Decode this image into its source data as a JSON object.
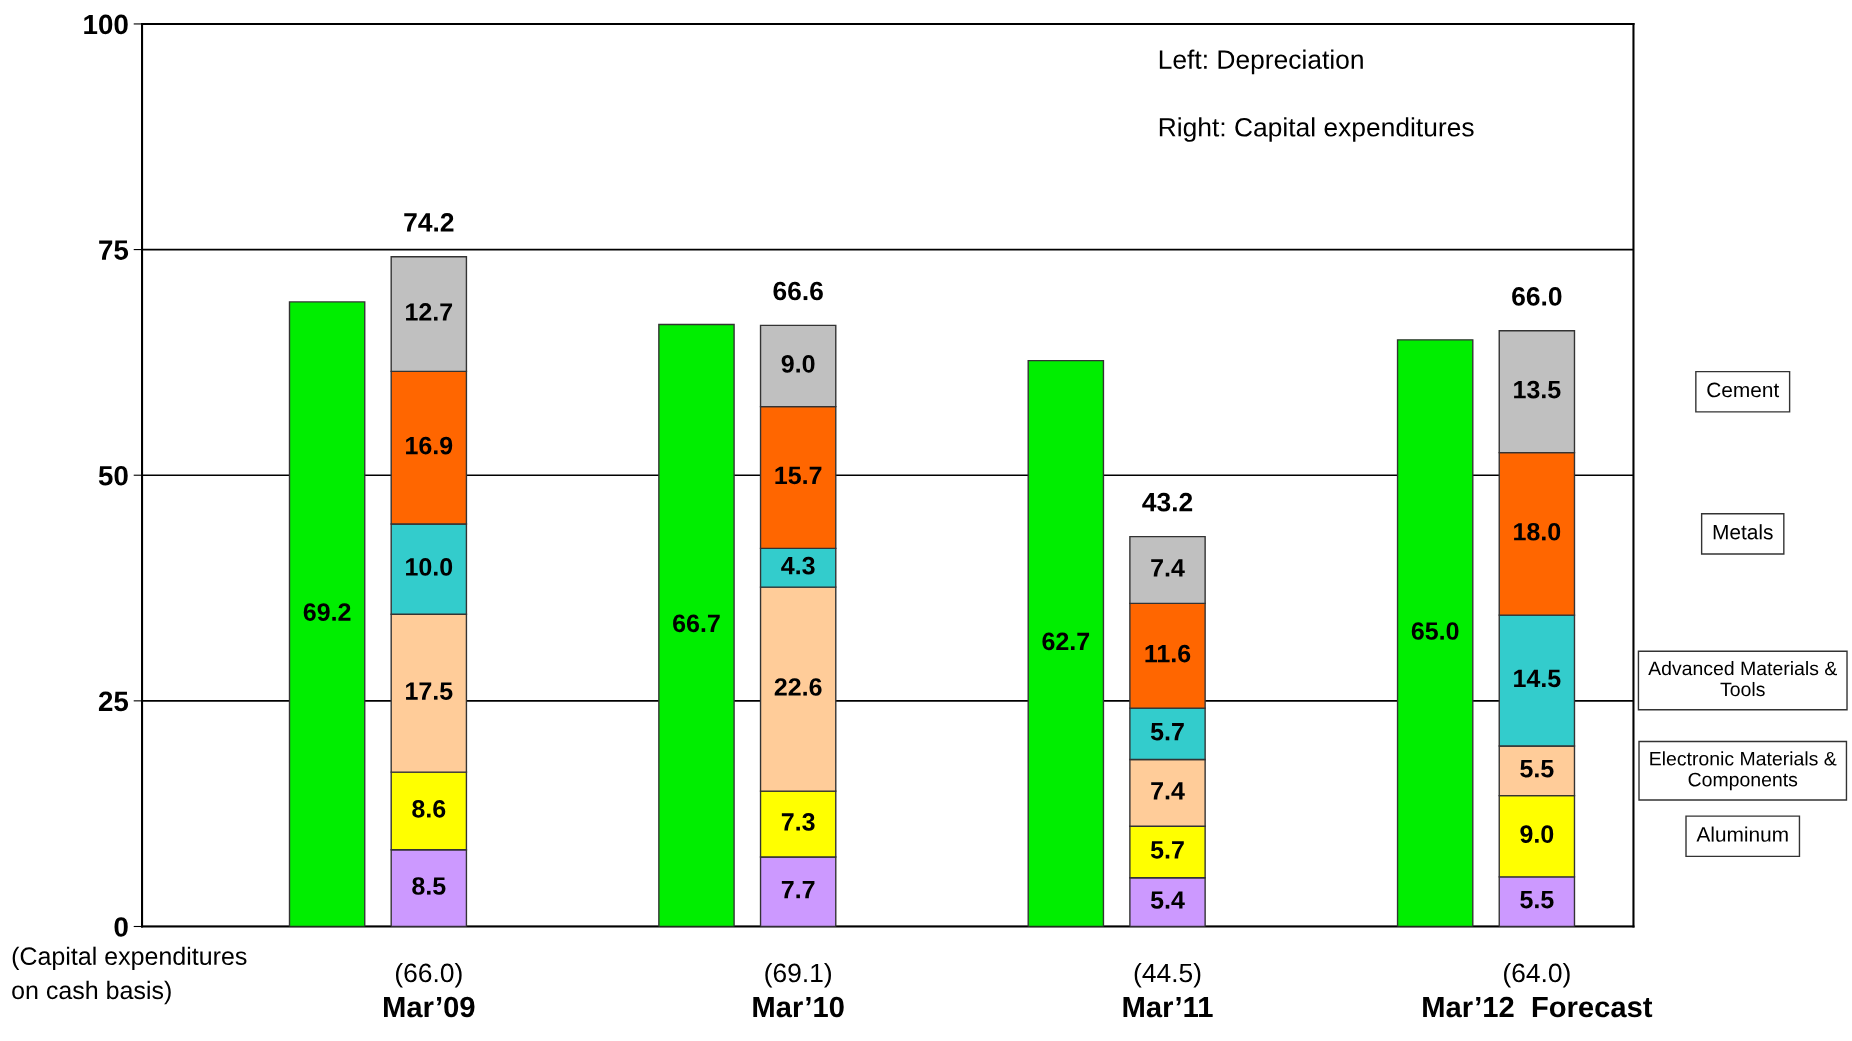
{
  "chart_data": {
    "type": "bar",
    "stacked": true,
    "categories": [
      null,
      "Mar’09",
      null,
      "Mar’10",
      null,
      "Mar’11",
      null,
      "Mar’12  Forecast"
    ],
    "series": [
      {
        "color": "#00ee00",
        "values": [
          69.2,
          null,
          66.7,
          null,
          62.7,
          null,
          65.0,
          null
        ],
        "value_labels": [
          "69.2",
          null,
          "66.7",
          null,
          "62.7",
          null,
          "65.0",
          null
        ]
      },
      {
        "color": "#cc99ff",
        "values": [
          null,
          8.5,
          null,
          7.7,
          null,
          5.4,
          null,
          5.5
        ],
        "value_labels": [
          null,
          "8.5",
          null,
          "7.7",
          null,
          "5.4",
          null,
          "5.5"
        ]
      },
      {
        "name": "Aluminum",
        "color": "#ffff00",
        "values": [
          null,
          8.6,
          null,
          7.3,
          null,
          5.7,
          null,
          9.0
        ],
        "value_labels": [
          null,
          "8.6",
          null,
          "7.3",
          null,
          "5.7",
          null,
          "9.0"
        ]
      },
      {
        "name": "Electronic Materials &\nComponents",
        "color": "#ffcc99",
        "values": [
          null,
          17.5,
          null,
          22.6,
          null,
          7.4,
          null,
          5.5
        ],
        "value_labels": [
          null,
          "17.5",
          null,
          "22.6",
          null,
          "7.4",
          null,
          "5.5"
        ]
      },
      {
        "name": "Advanced Materials &\nTools",
        "color": "#33cccc",
        "values": [
          null,
          10.0,
          null,
          4.3,
          null,
          5.7,
          null,
          14.5
        ],
        "value_labels": [
          null,
          "10.0",
          null,
          "4.3",
          null,
          "5.7",
          null,
          "14.5"
        ]
      },
      {
        "name": "Metals",
        "color": "#ff6600",
        "values": [
          null,
          16.9,
          null,
          15.7,
          null,
          11.6,
          null,
          18.0
        ],
        "value_labels": [
          null,
          "16.9",
          null,
          "15.7",
          null,
          "11.6",
          null,
          "18.0"
        ]
      },
      {
        "name": "Cement",
        "color": "#c0c0c0",
        "values": [
          null,
          12.7,
          null,
          9.0,
          null,
          7.4,
          null,
          13.5
        ],
        "value_labels": [
          null,
          "12.7",
          null,
          "9.0",
          null,
          "7.4",
          null,
          "13.5"
        ]
      }
    ],
    "totals": [
      null,
      "74.2",
      null,
      "66.6",
      null,
      "43.2",
      null,
      "66.0"
    ],
    "ylim": [
      0,
      100
    ],
    "yticks": [
      0,
      25,
      50,
      75,
      100
    ],
    "grid": "y",
    "legend": false,
    "annotations": [
      "Left: Depreciation",
      "Right: Capital expenditures",
      "(Capital expenditures\non cash basis)",
      "(66.0)",
      "(69.1)",
      "(44.5)",
      "(64.0)"
    ]
  }
}
